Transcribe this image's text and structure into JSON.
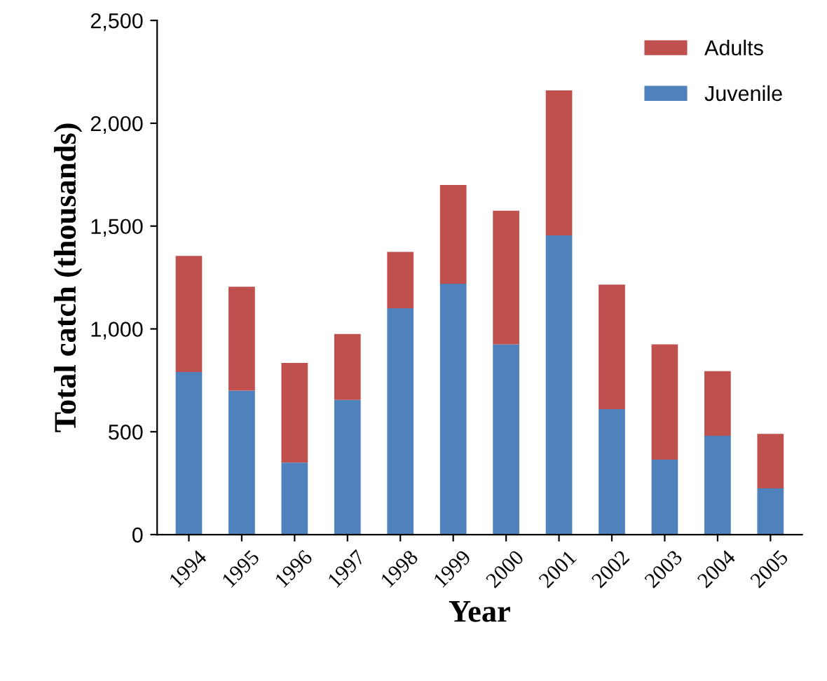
{
  "chart_data": {
    "type": "bar",
    "stacked": true,
    "xlabel": "Year",
    "ylabel": "Total catch (thousands)",
    "categories": [
      "1994",
      "1995",
      "1996",
      "1997",
      "1998",
      "1999",
      "2000",
      "2001",
      "2002",
      "2003",
      "2004",
      "2005"
    ],
    "series": [
      {
        "name": "Juvenile",
        "color": "#4f81bd",
        "values": [
          790,
          700,
          350,
          655,
          1100,
          1220,
          925,
          1455,
          610,
          365,
          480,
          225
        ]
      },
      {
        "name": "Adults",
        "color": "#c0504d",
        "values": [
          565,
          505,
          485,
          320,
          275,
          480,
          650,
          705,
          605,
          560,
          315,
          265
        ]
      }
    ],
    "ylim": [
      0,
      2500
    ],
    "yticks": [
      0,
      {
        "value": 500,
        "label": "500"
      },
      {
        "value": 1000,
        "label": "1,000"
      },
      {
        "value": 1500,
        "label": "1,500"
      },
      {
        "value": 2000,
        "label": "2,000"
      },
      {
        "value": 2500,
        "label": "2,500"
      }
    ],
    "grid": false,
    "legend": "top right"
  }
}
